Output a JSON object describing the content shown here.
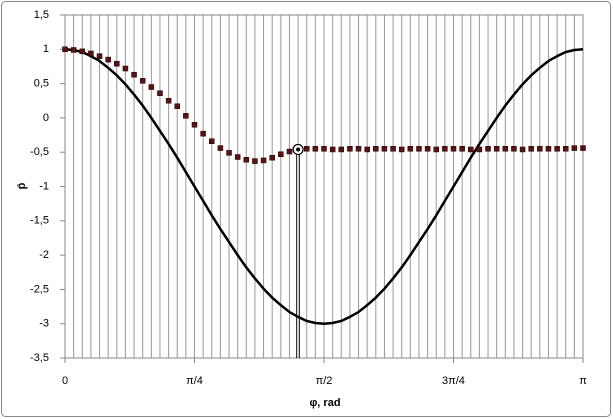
{
  "chart_data": {
    "type": "line",
    "x_label": "φ, rad",
    "y_label": "p̄",
    "xlim": [
      0,
      3.1416
    ],
    "ylim": [
      -3.5,
      1.5
    ],
    "xticks": [
      {
        "value": 0,
        "label": "0"
      },
      {
        "value": 0.7854,
        "label": "π/4"
      },
      {
        "value": 1.5708,
        "label": "π/2"
      },
      {
        "value": 2.3562,
        "label": "3π/4"
      },
      {
        "value": 3.1416,
        "label": "π"
      }
    ],
    "yticks": [
      {
        "value": -3.5,
        "label": "-3,5"
      },
      {
        "value": -3,
        "label": "-3"
      },
      {
        "value": -2.5,
        "label": "-2,5"
      },
      {
        "value": -2,
        "label": "-2"
      },
      {
        "value": -1.5,
        "label": "-1,5"
      },
      {
        "value": -1,
        "label": "-1"
      },
      {
        "value": -0.5,
        "label": "-0,5"
      },
      {
        "value": 0,
        "label": "0"
      },
      {
        "value": 0.5,
        "label": "0,5"
      },
      {
        "value": 1,
        "label": "1"
      },
      {
        "value": 1.5,
        "label": "1,5"
      }
    ],
    "x_grid_divisions": 60,
    "x": [
      0,
      0.0524,
      0.1047,
      0.1571,
      0.2094,
      0.2618,
      0.3142,
      0.3665,
      0.4189,
      0.4712,
      0.5236,
      0.576,
      0.6283,
      0.6807,
      0.733,
      0.7854,
      0.8378,
      0.8901,
      0.9425,
      0.9948,
      1.0472,
      1.0996,
      1.1519,
      1.2043,
      1.2566,
      1.309,
      1.3614,
      1.4137,
      1.4661,
      1.5184,
      1.5708,
      1.6232,
      1.6755,
      1.7279,
      1.7802,
      1.8326,
      1.885,
      1.9373,
      1.9897,
      2.042,
      2.0944,
      2.1468,
      2.1991,
      2.2515,
      2.3038,
      2.3562,
      2.4086,
      2.4609,
      2.5133,
      2.5656,
      2.618,
      2.6704,
      2.7227,
      2.7751,
      2.8274,
      2.8798,
      2.9322,
      2.9845,
      3.0369,
      3.0892,
      3.1416
    ],
    "series": [
      {
        "style": "line",
        "color": "#000000",
        "values": [
          1,
          0.99,
          0.96,
          0.9,
          0.83,
          0.73,
          0.62,
          0.49,
          0.34,
          0.18,
          0,
          -0.19,
          -0.38,
          -0.58,
          -0.79,
          -1,
          -1.21,
          -1.42,
          -1.62,
          -1.81,
          -2,
          -2.18,
          -2.34,
          -2.49,
          -2.62,
          -2.73,
          -2.83,
          -2.9,
          -2.96,
          -2.99,
          -3,
          -2.99,
          -2.96,
          -2.9,
          -2.83,
          -2.73,
          -2.62,
          -2.49,
          -2.34,
          -2.18,
          -2,
          -1.81,
          -1.62,
          -1.42,
          -1.21,
          -1,
          -0.79,
          -0.58,
          -0.38,
          -0.19,
          0,
          0.18,
          0.34,
          0.49,
          0.62,
          0.73,
          0.83,
          0.9,
          0.96,
          0.99,
          1
        ]
      },
      {
        "style": "markers",
        "color": "#5a1212",
        "values": [
          1,
          0.99,
          0.97,
          0.94,
          0.9,
          0.85,
          0.79,
          0.72,
          0.63,
          0.54,
          0.45,
          0.36,
          0.25,
          0.17,
          0.03,
          -0.1,
          -0.23,
          -0.34,
          -0.44,
          -0.51,
          -0.57,
          -0.61,
          -0.63,
          -0.62,
          -0.58,
          -0.53,
          -0.49,
          -0.46,
          -0.45,
          -0.45,
          -0.45,
          -0.46,
          -0.46,
          -0.45,
          -0.45,
          -0.46,
          -0.45,
          -0.45,
          -0.45,
          -0.46,
          -0.45,
          -0.45,
          -0.45,
          -0.46,
          -0.45,
          -0.45,
          -0.45,
          -0.46,
          -0.46,
          -0.45,
          -0.45,
          -0.45,
          -0.45,
          -0.46,
          -0.45,
          -0.45,
          -0.45,
          -0.45,
          -0.45,
          -0.44,
          -0.44
        ]
      }
    ],
    "separation_marker": {
      "x": 1.4137,
      "y": -0.46
    }
  }
}
